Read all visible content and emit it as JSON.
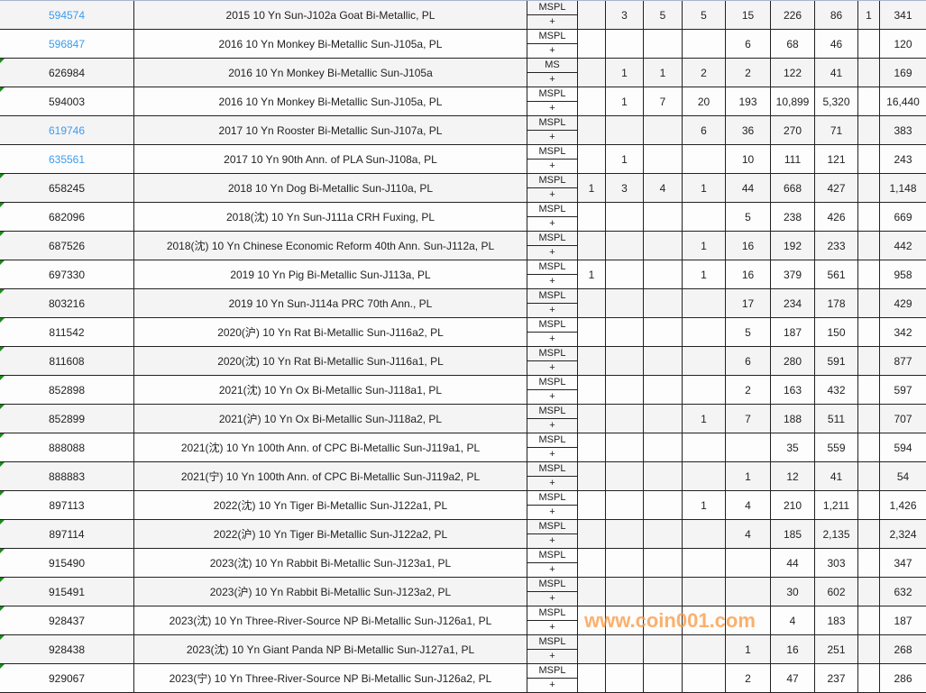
{
  "colors": {
    "link": "#3b9cf0",
    "row_alt": "#f4f4f4",
    "row": "#fdfdfd",
    "marker": "#1a8a1a",
    "watermark": "#fa963c"
  },
  "watermark": "www.coin001.com",
  "rows": [
    {
      "id": "594574",
      "link": true,
      "marker": false,
      "desc": "2015 10 Yn Sun-J102a Goat Bi-Metallic, PL",
      "grade": "MSPL",
      "plus": "+",
      "v": [
        "",
        "3",
        "5",
        "5",
        "15",
        "226",
        "86",
        "1",
        "341"
      ]
    },
    {
      "id": "596847",
      "link": true,
      "marker": false,
      "desc": "2016 10 Yn Monkey Bi-Metallic Sun-J105a, PL",
      "grade": "MSPL",
      "plus": "+",
      "v": [
        "",
        "",
        "",
        "",
        "6",
        "68",
        "46",
        "",
        "120"
      ]
    },
    {
      "id": "626984",
      "link": false,
      "marker": true,
      "desc": "2016 10 Yn Monkey Bi-Metallic Sun-J105a",
      "grade": "MS",
      "plus": "+",
      "v": [
        "",
        "1",
        "1",
        "2",
        "2",
        "122",
        "41",
        "",
        "169"
      ]
    },
    {
      "id": "594003",
      "link": false,
      "marker": true,
      "desc": "2016 10 Yn Monkey Bi-Metallic Sun-J105a, PL",
      "grade": "MSPL",
      "plus": "+",
      "v": [
        "",
        "1",
        "7",
        "20",
        "193",
        "10,899",
        "5,320",
        "",
        "16,440"
      ]
    },
    {
      "id": "619746",
      "link": true,
      "marker": false,
      "desc": "2017 10 Yn Rooster Bi-Metallic Sun-J107a, PL",
      "grade": "MSPL",
      "plus": "+",
      "v": [
        "",
        "",
        "",
        "6",
        "36",
        "270",
        "71",
        "",
        "383"
      ]
    },
    {
      "id": "635561",
      "link": true,
      "marker": false,
      "desc": "2017 10 Yn 90th Ann. of PLA Sun-J108a, PL",
      "grade": "MSPL",
      "plus": "+",
      "v": [
        "",
        "1",
        "",
        "",
        "10",
        "111",
        "121",
        "",
        "243"
      ]
    },
    {
      "id": "658245",
      "link": false,
      "marker": true,
      "desc": "2018 10 Yn Dog Bi-Metallic Sun-J110a, PL",
      "grade": "MSPL",
      "plus": "+",
      "v": [
        "1",
        "3",
        "4",
        "1",
        "44",
        "668",
        "427",
        "",
        "1,148"
      ]
    },
    {
      "id": "682096",
      "link": false,
      "marker": true,
      "desc": "2018(沈) 10 Yn Sun-J111a CRH Fuxing, PL",
      "grade": "MSPL",
      "plus": "+",
      "v": [
        "",
        "",
        "",
        "",
        "5",
        "238",
        "426",
        "",
        "669"
      ]
    },
    {
      "id": "687526",
      "link": false,
      "marker": true,
      "desc": "2018(沈) 10 Yn Chinese Economic Reform 40th Ann. Sun-J112a, PL",
      "grade": "MSPL",
      "plus": "+",
      "v": [
        "",
        "",
        "",
        "1",
        "16",
        "192",
        "233",
        "",
        "442"
      ]
    },
    {
      "id": "697330",
      "link": false,
      "marker": true,
      "desc": "2019 10 Yn Pig Bi-Metallic Sun-J113a, PL",
      "grade": "MSPL",
      "plus": "+",
      "v": [
        "1",
        "",
        "",
        "1",
        "16",
        "379",
        "561",
        "",
        "958"
      ]
    },
    {
      "id": "803216",
      "link": false,
      "marker": true,
      "desc": "2019 10 Yn Sun-J114a PRC 70th Ann., PL",
      "grade": "MSPL",
      "plus": "+",
      "v": [
        "",
        "",
        "",
        "",
        "17",
        "234",
        "178",
        "",
        "429"
      ]
    },
    {
      "id": "811542",
      "link": false,
      "marker": true,
      "desc": "2020(沪) 10 Yn Rat Bi-Metallic Sun-J116a2, PL",
      "grade": "MSPL",
      "plus": "+",
      "v": [
        "",
        "",
        "",
        "",
        "5",
        "187",
        "150",
        "",
        "342"
      ]
    },
    {
      "id": "811608",
      "link": false,
      "marker": true,
      "desc": "2020(沈) 10 Yn Rat Bi-Metallic Sun-J116a1, PL",
      "grade": "MSPL",
      "plus": "+",
      "v": [
        "",
        "",
        "",
        "",
        "6",
        "280",
        "591",
        "",
        "877"
      ]
    },
    {
      "id": "852898",
      "link": false,
      "marker": true,
      "desc": "2021(沈) 10 Yn Ox Bi-Metallic Sun-J118a1, PL",
      "grade": "MSPL",
      "plus": "+",
      "v": [
        "",
        "",
        "",
        "",
        "2",
        "163",
        "432",
        "",
        "597"
      ]
    },
    {
      "id": "852899",
      "link": false,
      "marker": true,
      "desc": "2021(沪) 10 Yn Ox Bi-Metallic Sun-J118a2, PL",
      "grade": "MSPL",
      "plus": "+",
      "v": [
        "",
        "",
        "",
        "1",
        "7",
        "188",
        "511",
        "",
        "707"
      ]
    },
    {
      "id": "888088",
      "link": false,
      "marker": true,
      "desc": "2021(沈) 10 Yn 100th Ann. of CPC Bi-Metallic Sun-J119a1, PL",
      "grade": "MSPL",
      "plus": "+",
      "v": [
        "",
        "",
        "",
        "",
        "",
        "35",
        "559",
        "",
        "594"
      ]
    },
    {
      "id": "888883",
      "link": false,
      "marker": true,
      "desc": "2021(宁) 10 Yn 100th Ann. of CPC Bi-Metallic Sun-J119a2, PL",
      "grade": "MSPL",
      "plus": "+",
      "v": [
        "",
        "",
        "",
        "",
        "1",
        "12",
        "41",
        "",
        "54"
      ]
    },
    {
      "id": "897113",
      "link": false,
      "marker": true,
      "desc": "2022(沈) 10 Yn Tiger Bi-Metallic Sun-J122a1, PL",
      "grade": "MSPL",
      "plus": "+",
      "v": [
        "",
        "",
        "",
        "1",
        "4",
        "210",
        "1,211",
        "",
        "1,426"
      ]
    },
    {
      "id": "897114",
      "link": false,
      "marker": true,
      "desc": "2022(沪) 10 Yn Tiger Bi-Metallic Sun-J122a2, PL",
      "grade": "MSPL",
      "plus": "+",
      "v": [
        "",
        "",
        "",
        "",
        "4",
        "185",
        "2,135",
        "",
        "2,324"
      ]
    },
    {
      "id": "915490",
      "link": false,
      "marker": true,
      "desc": "2023(沈) 10 Yn Rabbit Bi-Metallic Sun-J123a1, PL",
      "grade": "MSPL",
      "plus": "+",
      "v": [
        "",
        "",
        "",
        "",
        "",
        "44",
        "303",
        "",
        "347"
      ]
    },
    {
      "id": "915491",
      "link": false,
      "marker": true,
      "desc": "2023(沪) 10 Yn Rabbit Bi-Metallic Sun-J123a2, PL",
      "grade": "MSPL",
      "plus": "+",
      "v": [
        "",
        "",
        "",
        "",
        "",
        "30",
        "602",
        "",
        "632"
      ]
    },
    {
      "id": "928437",
      "link": false,
      "marker": true,
      "desc": "2023(沈) 10 Yn Three-River-Source NP Bi-Metallic Sun-J126a1, PL",
      "grade": "MSPL",
      "plus": "+",
      "v": [
        "",
        "",
        "",
        "",
        "",
        "4",
        "183",
        "",
        "187"
      ]
    },
    {
      "id": "928438",
      "link": false,
      "marker": true,
      "desc": "2023(沈) 10 Yn Giant Panda NP Bi-Metallic Sun-J127a1, PL",
      "grade": "MSPL",
      "plus": "+",
      "v": [
        "",
        "",
        "",
        "",
        "1",
        "16",
        "251",
        "",
        "268"
      ]
    },
    {
      "id": "929067",
      "link": false,
      "marker": true,
      "desc": "2023(宁) 10 Yn Three-River-Source NP Bi-Metallic Sun-J126a2, PL",
      "grade": "MSPL",
      "plus": "+",
      "v": [
        "",
        "",
        "",
        "",
        "2",
        "47",
        "237",
        "",
        "286"
      ]
    }
  ]
}
